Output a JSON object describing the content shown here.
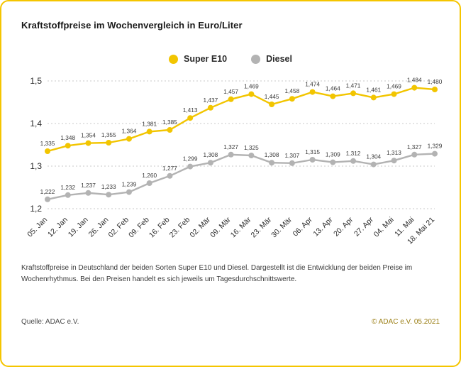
{
  "page": {
    "title": "Kraftstoffpreise im Wochenvergleich in Euro/Liter",
    "caption": "Kraftstoffpreise in Deutschland der beiden Sorten Super E10 und Diesel. Dargestellt ist die Entwicklung der beiden Preise im Wochenrhythmus. Bei den Preisen handelt es sich jeweils um Tagesdurchschnittswerte.",
    "source": "Quelle: ADAC e.V.",
    "copyright": "© ADAC e.V. 05.2021",
    "border_color": "#F5C500",
    "background_color": "#FFFFFF"
  },
  "legend": {
    "items": [
      {
        "label": "Super E10",
        "color": "#F2C500"
      },
      {
        "label": "Diesel",
        "color": "#B3B3B3"
      }
    ]
  },
  "chart_data": {
    "type": "line",
    "title": "Kraftstoffpreise im Wochenvergleich in Euro/Liter",
    "xlabel": "",
    "ylabel": "Euro/Liter",
    "ylim": [
      1.2,
      1.5
    ],
    "grid": true,
    "legend_position": "top",
    "x": [
      "05. Jan",
      "12. Jan",
      "19. Jan",
      "26. Jan",
      "02. Feb",
      "09. Feb",
      "16. Feb",
      "23. Feb",
      "02. Mär",
      "09. Mär",
      "16. Mär",
      "23. Mär",
      "30. Mär",
      "06. Apr",
      "13. Apr",
      "20. Apr",
      "27. Apr",
      "04. Mai",
      "11. Mai",
      "18. Mai 21"
    ],
    "yticks": [
      {
        "v": 1.5,
        "label": "1,5"
      },
      {
        "v": 1.4,
        "label": "1,4"
      },
      {
        "v": 1.3,
        "label": "1,3"
      },
      {
        "v": 1.2,
        "label": "1,2"
      }
    ],
    "series": [
      {
        "name": "Super E10",
        "color": "#F2C500",
        "values": [
          1.335,
          1.348,
          1.354,
          1.355,
          1.364,
          1.381,
          1.385,
          1.413,
          1.437,
          1.457,
          1.469,
          1.445,
          1.458,
          1.474,
          1.464,
          1.471,
          1.461,
          1.469,
          1.484,
          1.48
        ]
      },
      {
        "name": "Diesel",
        "color": "#B3B3B3",
        "values": [
          1.222,
          1.232,
          1.237,
          1.233,
          1.239,
          1.26,
          1.277,
          1.299,
          1.308,
          1.327,
          1.325,
          1.308,
          1.307,
          1.315,
          1.309,
          1.312,
          1.304,
          1.313,
          1.327,
          1.329
        ]
      }
    ]
  }
}
